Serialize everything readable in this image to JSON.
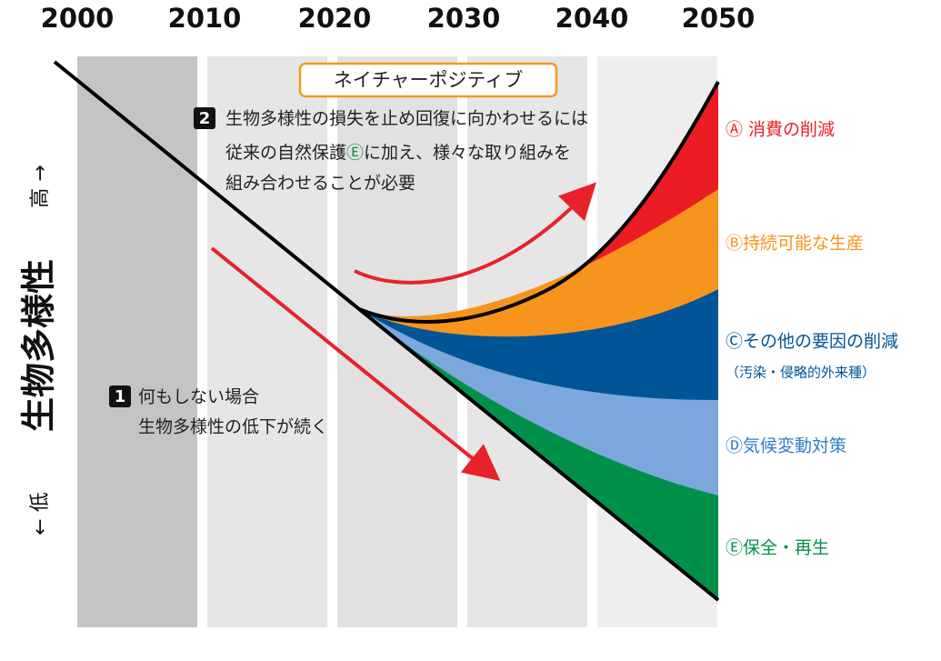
{
  "years": [
    "2000",
    "2010",
    "2020",
    "2030",
    "2040",
    "2050"
  ],
  "y_axis": {
    "high": "高 →",
    "title": "生物多様性",
    "low": "← 低"
  },
  "nature_positive": "ネイチャーポジティブ",
  "scenario_2": {
    "number": "2",
    "line1": "生物多様性の損失を止め回復に向かわせるには",
    "line2": [
      "従来の自然保護",
      "Ⓔ",
      "に加え、様々な取り組みを"
    ],
    "line3": "組み合わせることが必要"
  },
  "scenario_1": {
    "number": "1",
    "lines": [
      "何もしない場合",
      "生物多様性の低下が続く"
    ]
  },
  "legend": [
    "Ⓐ 消費の削減",
    "Ⓑ持続可能な生産",
    "Ⓒその他の要因の削減",
    "（汚染・侵略的外来種）",
    "Ⓓ気候変動対策",
    "Ⓔ保全・再生"
  ]
}
